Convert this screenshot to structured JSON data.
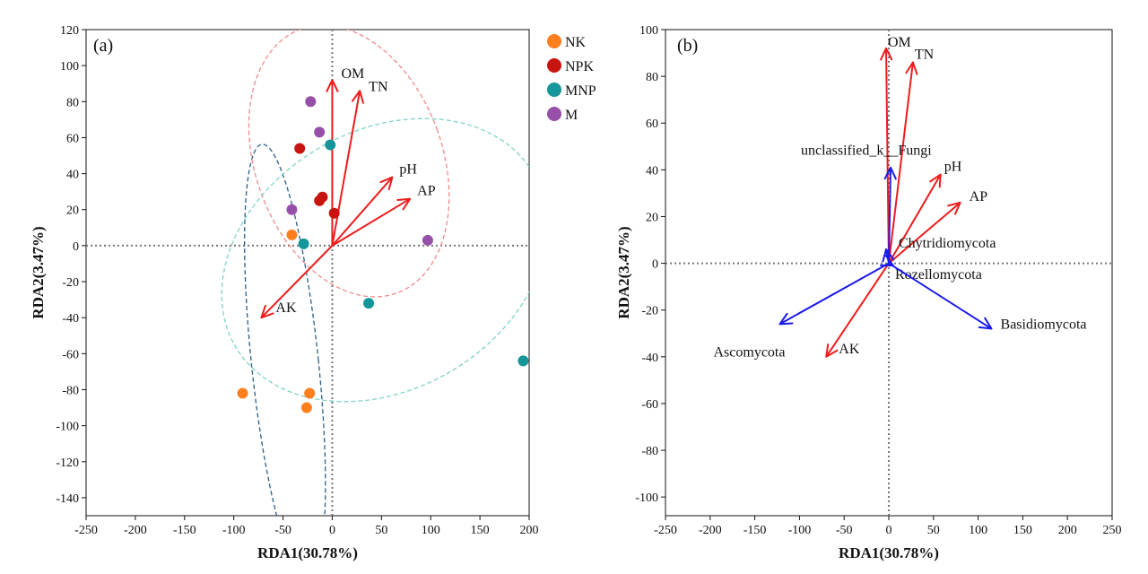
{
  "chart_data": [
    {
      "type": "scatter",
      "panel_label": "(a)",
      "xlabel": "RDA1(30.78%)",
      "ylabel": "RDA2(3.47%)",
      "xlim": [
        -250,
        200
      ],
      "ylim": [
        -150,
        120
      ],
      "xticks": [
        -250,
        -200,
        -150,
        -100,
        -50,
        0,
        50,
        100,
        150,
        200
      ],
      "yticks": [
        -140,
        -120,
        -100,
        -80,
        -60,
        -40,
        -20,
        0,
        20,
        40,
        60,
        80,
        100,
        120
      ],
      "xtick_labels": [
        "-250",
        "-200",
        "-150",
        "-100",
        "-50",
        "0",
        "50",
        "100",
        "150",
        "200"
      ],
      "ytick_labels": [
        "-140",
        "-120",
        "-100",
        "-80",
        "-60",
        "-40",
        "-20",
        "0",
        "20",
        "40",
        "60",
        "80",
        "100",
        "120"
      ],
      "reference_lines": {
        "x": 0,
        "y": 0
      },
      "legend_position": "top-right outside",
      "series": [
        {
          "name": "NK",
          "color": "#ff7f1e",
          "points": [
            [
              -41,
              6
            ],
            [
              -91,
              -82
            ],
            [
              -23,
              -82
            ],
            [
              -26,
              -90
            ]
          ]
        },
        {
          "name": "NPK",
          "color": "#c8140f",
          "points": [
            [
              -33,
              54
            ],
            [
              -10,
              27
            ],
            [
              -13,
              25
            ],
            [
              2,
              18
            ]
          ]
        },
        {
          "name": "MNP",
          "color": "#14969b",
          "points": [
            [
              -2,
              56
            ],
            [
              -29,
              1
            ],
            [
              37,
              -32
            ],
            [
              194,
              -64
            ]
          ]
        },
        {
          "name": "M",
          "color": "#9650aa",
          "points": [
            [
              -22,
              80
            ],
            [
              -13,
              63
            ],
            [
              -41,
              20
            ],
            [
              97,
              3
            ]
          ]
        }
      ],
      "ellipses": [
        {
          "group": "NK",
          "color": "#2a5f8a",
          "cx": -48,
          "cy": -65,
          "rx": 34,
          "ry": 122,
          "angle": -6
        },
        {
          "group": "M",
          "color": "#f08a8a",
          "cx": 17,
          "cy": 47,
          "rx": 95,
          "ry": 78,
          "angle": -20
        },
        {
          "group": "MNP",
          "color": "#7fd3c8",
          "cx": 53,
          "cy": -8,
          "rx": 175,
          "ry": 72,
          "angle": -30
        }
      ],
      "arrows": [
        {
          "label": "OM",
          "color": "#ee1c1c",
          "x": 0,
          "y": 92
        },
        {
          "label": "TN",
          "color": "#ee1c1c",
          "x": 28,
          "y": 86
        },
        {
          "label": "pH",
          "color": "#ee1c1c",
          "x": 61,
          "y": 38
        },
        {
          "label": "AP",
          "color": "#ee1c1c",
          "x": 79,
          "y": 26
        },
        {
          "label": "AK",
          "color": "#ee1c1c",
          "x": -72,
          "y": -40
        }
      ]
    },
    {
      "type": "scatter",
      "panel_label": "(b)",
      "xlabel": "RDA1(30.78%)",
      "ylabel": "RDA2(3.47%)",
      "xlim": [
        -250,
        250
      ],
      "ylim": [
        -108,
        100
      ],
      "xticks": [
        -250,
        -200,
        -150,
        -100,
        -50,
        0,
        50,
        100,
        150,
        200,
        250
      ],
      "yticks": [
        -100,
        -80,
        -60,
        -40,
        -20,
        0,
        20,
        40,
        60,
        80,
        100
      ],
      "xtick_labels": [
        "-250",
        "-200",
        "-150",
        "-100",
        "-50",
        "0",
        "50",
        "100",
        "150",
        "200",
        "250"
      ],
      "ytick_labels": [
        "-100",
        "-80",
        "-60",
        "-40",
        "-20",
        "0",
        "20",
        "40",
        "60",
        "80",
        "100"
      ],
      "reference_lines": {
        "x": 0,
        "y": 0
      },
      "arrows": [
        {
          "label": "OM",
          "color": "#ee1c1c",
          "x": -3,
          "y": 92
        },
        {
          "label": "TN",
          "color": "#ee1c1c",
          "x": 27,
          "y": 86
        },
        {
          "label": "pH",
          "color": "#ee1c1c",
          "x": 58,
          "y": 38
        },
        {
          "label": "AP",
          "color": "#ee1c1c",
          "x": 80,
          "y": 26
        },
        {
          "label": "AK",
          "color": "#ee1c1c",
          "x": -70,
          "y": -40
        },
        {
          "label": "unclassified_k__Fungi",
          "color": "#1a1aee",
          "x": 2,
          "y": 41
        },
        {
          "label": "Chytridiomycota",
          "color": "#1a1aee",
          "x": -3,
          "y": 6
        },
        {
          "label": "Rozellomycota",
          "color": "#1a1aee",
          "x": 5,
          "y": -1
        },
        {
          "label": "Ascomycota",
          "color": "#1a1aee",
          "x": -122,
          "y": -26
        },
        {
          "label": "Basidiomycota",
          "color": "#1a1aee",
          "x": 115,
          "y": -28
        }
      ]
    }
  ]
}
